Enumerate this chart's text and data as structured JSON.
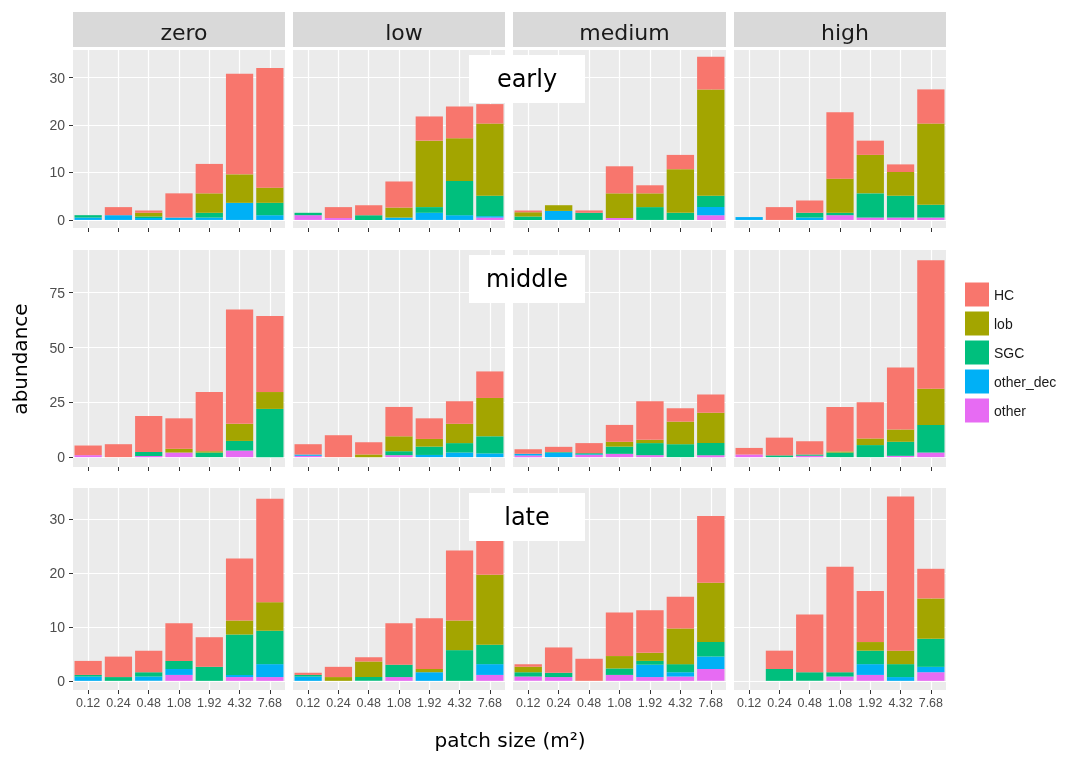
{
  "chart_data": [
    {
      "type": "bar",
      "title": "zero",
      "stacked": true,
      "categories": [
        "0.12",
        "0.24",
        "0.48",
        "1.08",
        "1.92",
        "4.32",
        "7.68"
      ],
      "ylim": [
        -1.7,
        35.8
      ],
      "yticks": [
        0,
        10,
        20,
        30
      ],
      "grid": true,
      "tick_labels": "y",
      "series": [
        {
          "color": "#e76bf3",
          "values": [
            0,
            0,
            0,
            0,
            0,
            0,
            0
          ]
        },
        {
          "color": "#00b0f6",
          "values": [
            0.5,
            1.0,
            0.4,
            0.5,
            0.5,
            3.6,
            1.0
          ]
        },
        {
          "color": "#00bf7d",
          "values": [
            0.5,
            0,
            0.3,
            0,
            1.0,
            0,
            2.6
          ]
        },
        {
          "color": "#a3a500",
          "values": [
            0,
            0,
            0.8,
            0,
            4.1,
            6.0,
            3.2
          ]
        },
        {
          "color": "#f8766d",
          "values": [
            0,
            1.7,
            0.5,
            5.1,
            6.2,
            21.2,
            25.2
          ]
        }
      ]
    },
    {
      "type": "bar",
      "title": "low",
      "stacked": true,
      "categories": [
        "0.12",
        "0.24",
        "0.48",
        "1.08",
        "1.92",
        "4.32",
        "7.68"
      ],
      "ylim": [
        -1.7,
        35.8
      ],
      "yticks": [
        0,
        10,
        20,
        30
      ],
      "grid": true,
      "tick_labels": false,
      "annotations": [
        "early"
      ],
      "series": [
        {
          "color": "#e76bf3",
          "values": [
            1.0,
            0.4,
            0,
            0,
            0,
            0,
            0.5
          ]
        },
        {
          "color": "#00b0f6",
          "values": [
            0,
            0,
            0,
            0.5,
            1.5,
            1.0,
            0.3
          ]
        },
        {
          "color": "#00bf7d",
          "values": [
            0.5,
            0,
            1.0,
            0,
            1.2,
            7.2,
            4.3
          ]
        },
        {
          "color": "#a3a500",
          "values": [
            0,
            0,
            0,
            2.1,
            14.0,
            9.0,
            15.2
          ]
        },
        {
          "color": "#f8766d",
          "values": [
            0,
            2.3,
            2.1,
            5.5,
            5.1,
            6.7,
            4.1
          ]
        }
      ]
    },
    {
      "type": "bar",
      "title": "medium",
      "stacked": true,
      "categories": [
        "0.12",
        "0.24",
        "0.48",
        "1.08",
        "1.92",
        "4.32",
        "7.68"
      ],
      "ylim": [
        -1.7,
        35.8
      ],
      "yticks": [
        0,
        10,
        20,
        30
      ],
      "grid": true,
      "tick_labels": false,
      "series": [
        {
          "color": "#e76bf3",
          "values": [
            0,
            0,
            0,
            0.4,
            0,
            0,
            1.0
          ]
        },
        {
          "color": "#00b0f6",
          "values": [
            0,
            1.9,
            0,
            0,
            0,
            0,
            1.7
          ]
        },
        {
          "color": "#00bf7d",
          "values": [
            0.7,
            0,
            1.5,
            0,
            2.7,
            1.5,
            2.4
          ]
        },
        {
          "color": "#a3a500",
          "values": [
            0.9,
            1.2,
            0,
            5.2,
            2.9,
            9.2,
            22.4
          ]
        },
        {
          "color": "#f8766d",
          "values": [
            0.4,
            0,
            0.5,
            5.7,
            1.7,
            3.0,
            6.9
          ]
        }
      ]
    },
    {
      "type": "bar",
      "title": "high",
      "stacked": true,
      "categories": [
        "0.12",
        "0.24",
        "0.48",
        "1.08",
        "1.92",
        "4.32",
        "7.68"
      ],
      "ylim": [
        -1.7,
        35.8
      ],
      "yticks": [
        0,
        10,
        20,
        30
      ],
      "grid": true,
      "tick_labels": false,
      "series": [
        {
          "color": "#e76bf3",
          "values": [
            0,
            0,
            0,
            1.0,
            0.5,
            0.5,
            0.5
          ]
        },
        {
          "color": "#00b0f6",
          "values": [
            0.6,
            0,
            0.5,
            0,
            0,
            0,
            0
          ]
        },
        {
          "color": "#00bf7d",
          "values": [
            0,
            0,
            1.0,
            0.5,
            5.1,
            4.6,
            2.7
          ]
        },
        {
          "color": "#a3a500",
          "values": [
            0,
            0,
            0,
            7.2,
            8.1,
            5.0,
            17.1
          ]
        },
        {
          "color": "#f8766d",
          "values": [
            0,
            2.7,
            2.6,
            14.0,
            3.0,
            1.6,
            7.2
          ]
        }
      ]
    },
    {
      "type": "bar",
      "ylabel": "abundance",
      "stacked": true,
      "categories": [
        "0.12",
        "0.24",
        "0.48",
        "1.08",
        "1.92",
        "4.32",
        "7.68"
      ],
      "ylim": [
        -4.5,
        94.5
      ],
      "yticks": [
        0,
        25,
        50,
        75
      ],
      "grid": true,
      "tick_labels": "y",
      "series": [
        {
          "color": "#e76bf3",
          "values": [
            0.9,
            0,
            0.5,
            2.1,
            0,
            3.0,
            0
          ]
        },
        {
          "color": "#00b0f6",
          "values": [
            0,
            0,
            0,
            0,
            0,
            0,
            0
          ]
        },
        {
          "color": "#00bf7d",
          "values": [
            0,
            0,
            1.8,
            0,
            2.1,
            4.4,
            22.0
          ]
        },
        {
          "color": "#a3a500",
          "values": [
            0,
            0,
            0,
            1.7,
            0.6,
            7.8,
            7.7
          ]
        },
        {
          "color": "#f8766d",
          "values": [
            4.4,
            5.9,
            16.5,
            13.9,
            27.0,
            52.2,
            34.7
          ]
        }
      ]
    },
    {
      "type": "bar",
      "stacked": true,
      "categories": [
        "0.12",
        "0.24",
        "0.48",
        "1.08",
        "1.92",
        "4.32",
        "7.68"
      ],
      "ylim": [
        -4.5,
        94.5
      ],
      "yticks": [
        0,
        25,
        50,
        75
      ],
      "grid": true,
      "tick_labels": false,
      "annotations": [
        "middle"
      ],
      "series": [
        {
          "color": "#e76bf3",
          "values": [
            0.6,
            0,
            0,
            0.9,
            0,
            0,
            0
          ]
        },
        {
          "color": "#00b0f6",
          "values": [
            0.6,
            0,
            0,
            0,
            1.0,
            2.1,
            1.7
          ]
        },
        {
          "color": "#00bf7d",
          "values": [
            0,
            0,
            0,
            1.8,
            3.8,
            4.3,
            7.8
          ]
        },
        {
          "color": "#a3a500",
          "values": [
            0,
            0,
            1.2,
            6.8,
            3.5,
            8.8,
            17.5
          ]
        },
        {
          "color": "#f8766d",
          "values": [
            4.7,
            10.0,
            5.6,
            13.4,
            9.4,
            10.3,
            12.1
          ]
        }
      ]
    },
    {
      "type": "bar",
      "stacked": true,
      "categories": [
        "0.12",
        "0.24",
        "0.48",
        "1.08",
        "1.92",
        "4.32",
        "7.68"
      ],
      "ylim": [
        -4.5,
        94.5
      ],
      "yticks": [
        0,
        25,
        50,
        75
      ],
      "grid": true,
      "tick_labels": false,
      "series": [
        {
          "color": "#e76bf3",
          "values": [
            0.7,
            0,
            1.0,
            1.5,
            0.9,
            0,
            0.9
          ]
        },
        {
          "color": "#00b0f6",
          "values": [
            0.9,
            2.0,
            0.3,
            0,
            0,
            0,
            0
          ]
        },
        {
          "color": "#00bf7d",
          "values": [
            0,
            0.3,
            0.5,
            3.3,
            5.5,
            5.9,
            5.5
          ]
        },
        {
          "color": "#a3a500",
          "values": [
            0,
            0,
            0,
            2.2,
            1.5,
            10.3,
            13.8
          ]
        },
        {
          "color": "#f8766d",
          "values": [
            2.0,
            2.4,
            4.6,
            7.7,
            17.6,
            6.1,
            8.4
          ]
        }
      ]
    },
    {
      "type": "bar",
      "stacked": true,
      "categories": [
        "0.12",
        "0.24",
        "0.48",
        "1.08",
        "1.92",
        "4.32",
        "7.68"
      ],
      "ylim": [
        -4.5,
        94.5
      ],
      "yticks": [
        0,
        25,
        50,
        75
      ],
      "grid": true,
      "tick_labels": false,
      "legend": "right",
      "series": [
        {
          "name": "other",
          "color": "#e76bf3",
          "values": [
            1.2,
            0,
            0.6,
            0,
            0,
            0.6,
            2.1
          ]
        },
        {
          "name": "other_dec",
          "color": "#00b0f6",
          "values": [
            0,
            0,
            0,
            0,
            0,
            0,
            0
          ]
        },
        {
          "name": "SGC",
          "color": "#00bf7d",
          "values": [
            0,
            0.8,
            0.6,
            2.1,
            5.5,
            6.4,
            12.6
          ]
        },
        {
          "name": "lob",
          "color": "#a3a500",
          "values": [
            0,
            0,
            0,
            0.5,
            3.0,
            5.6,
            16.5
          ]
        },
        {
          "name": "HC",
          "color": "#f8766d",
          "values": [
            3.0,
            8.1,
            6.1,
            20.3,
            16.5,
            28.3,
            58.6
          ]
        }
      ]
    },
    {
      "type": "bar",
      "stacked": true,
      "categories": [
        "0.12",
        "0.24",
        "0.48",
        "1.08",
        "1.92",
        "4.32",
        "7.68"
      ],
      "ylim": [
        -1.7,
        35.8
      ],
      "yticks": [
        0,
        10,
        20,
        30
      ],
      "grid": true,
      "series": [
        {
          "color": "#e76bf3",
          "values": [
            0,
            0,
            0,
            1.1,
            0,
            0.7,
            0.7
          ]
        },
        {
          "color": "#00b0f6",
          "values": [
            0.8,
            0,
            0.8,
            1.1,
            0,
            0.4,
            2.4
          ]
        },
        {
          "color": "#00bf7d",
          "values": [
            0.3,
            0.7,
            0.8,
            1.5,
            2.6,
            7.5,
            6.2
          ]
        },
        {
          "color": "#a3a500",
          "values": [
            0,
            0,
            0,
            0,
            0,
            2.6,
            5.3
          ]
        },
        {
          "color": "#f8766d",
          "values": [
            2.6,
            3.8,
            4.0,
            7.0,
            5.5,
            11.5,
            19.2
          ]
        }
      ]
    },
    {
      "type": "bar",
      "xlabel": "patch size (m²)",
      "stacked": true,
      "categories": [
        "0.12",
        "0.24",
        "0.48",
        "1.08",
        "1.92",
        "4.32",
        "7.68"
      ],
      "ylim": [
        -1.7,
        35.8
      ],
      "yticks": [
        0,
        10,
        20,
        30
      ],
      "grid": true,
      "tick_labels": "x",
      "annotations": [
        "late"
      ],
      "series": [
        {
          "color": "#e76bf3",
          "values": [
            0,
            0,
            0,
            0.7,
            0,
            0,
            1.1
          ]
        },
        {
          "color": "#00b0f6",
          "values": [
            0.8,
            0,
            0,
            0,
            1.6,
            0,
            2.0
          ]
        },
        {
          "color": "#00bf7d",
          "values": [
            0.3,
            0,
            0.7,
            2.3,
            0,
            5.7,
            3.6
          ]
        },
        {
          "color": "#a3a500",
          "values": [
            0,
            0.7,
            2.9,
            0,
            0.6,
            5.5,
            13.0
          ]
        },
        {
          "color": "#f8766d",
          "values": [
            0.4,
            1.9,
            0.8,
            7.7,
            9.4,
            13.0,
            6.4
          ]
        }
      ]
    },
    {
      "type": "bar",
      "stacked": true,
      "categories": [
        "0.12",
        "0.24",
        "0.48",
        "1.08",
        "1.92",
        "4.32",
        "7.68"
      ],
      "ylim": [
        -1.7,
        35.8
      ],
      "yticks": [
        0,
        10,
        20,
        30
      ],
      "grid": true,
      "tick_labels": "x",
      "series": [
        {
          "color": "#e76bf3",
          "values": [
            0.8,
            0.7,
            0,
            1.1,
            0.7,
            0.8,
            2.2
          ]
        },
        {
          "color": "#00b0f6",
          "values": [
            0,
            0,
            0,
            0,
            2.3,
            0.8,
            2.3
          ]
        },
        {
          "color": "#00bf7d",
          "values": [
            0.8,
            0.8,
            0,
            1.2,
            0.7,
            1.5,
            2.7
          ]
        },
        {
          "color": "#a3a500",
          "values": [
            1.0,
            0,
            0,
            2.3,
            1.5,
            6.6,
            11.0
          ]
        },
        {
          "color": "#f8766d",
          "values": [
            0.5,
            4.7,
            4.1,
            8.1,
            7.9,
            5.9,
            12.4
          ]
        }
      ]
    },
    {
      "type": "bar",
      "stacked": true,
      "categories": [
        "0.12",
        "0.24",
        "0.48",
        "1.08",
        "1.92",
        "4.32",
        "7.68"
      ],
      "ylim": [
        -1.7,
        35.8
      ],
      "yticks": [
        0,
        10,
        20,
        30
      ],
      "grid": true,
      "tick_labels": "x",
      "series": [
        {
          "color": "#e76bf3",
          "values": [
            0,
            0,
            0,
            0.8,
            1.1,
            0,
            1.6
          ]
        },
        {
          "color": "#00b0f6",
          "values": [
            0,
            0,
            0,
            0,
            2.0,
            0.7,
            1.0
          ]
        },
        {
          "color": "#00bf7d",
          "values": [
            0,
            2.2,
            1.6,
            0.8,
            2.5,
            2.4,
            5.2
          ]
        },
        {
          "color": "#a3a500",
          "values": [
            0,
            0,
            0,
            0,
            1.6,
            2.5,
            7.5
          ]
        },
        {
          "color": "#f8766d",
          "values": [
            0,
            3.4,
            10.7,
            19.6,
            9.5,
            28.6,
            5.5
          ]
        }
      ]
    }
  ]
}
